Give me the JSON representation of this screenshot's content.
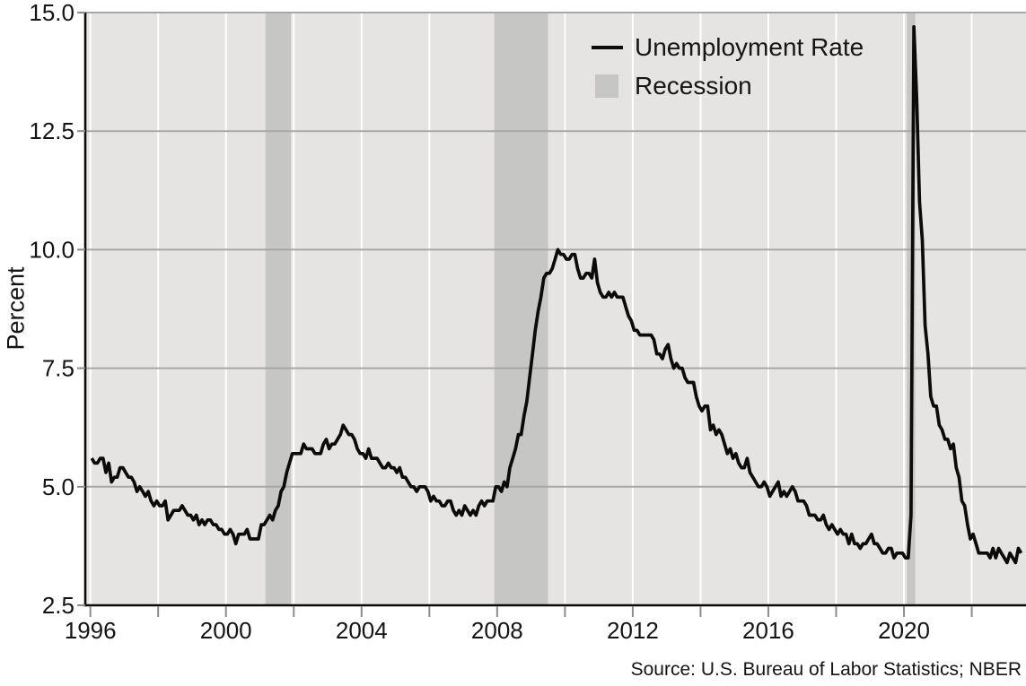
{
  "chart": {
    "ylabel": "Percent",
    "source": "Source: U.S. Bureau of Labor Statistics; NBER",
    "legend": [
      {
        "label": "Unemployment Rate",
        "type": "line",
        "color": "#0b0b0b"
      },
      {
        "label": "Recession",
        "type": "patch",
        "color": "#c6c6c5"
      }
    ]
  },
  "chart_data": {
    "type": "line",
    "title": "",
    "xlabel": "",
    "ylabel": "Percent",
    "x_domain": [
      1995.85,
      2023.6
    ],
    "ylim": [
      2.5,
      15.0
    ],
    "y_ticks": [
      2.5,
      5.0,
      7.5,
      10.0,
      12.5,
      15.0
    ],
    "x_minor_ticks": [
      1996,
      1998,
      2000,
      2002,
      2004,
      2006,
      2008,
      2010,
      2012,
      2014,
      2016,
      2018,
      2020,
      2022
    ],
    "x_labeled_ticks": [
      1996,
      2000,
      2004,
      2008,
      2012,
      2016,
      2020
    ],
    "grid": {
      "horizontal_color": "#a7a7a7",
      "vertical_color": "#ffffff"
    },
    "plot_background": "#e5e4e3",
    "recession_color": "#c6c6c5",
    "legend_position": "upper center-right inside",
    "recessions": [
      {
        "start": "2001-03",
        "end": "2001-11"
      },
      {
        "start": "2007-12",
        "end": "2009-06"
      },
      {
        "start": "2020-02",
        "end": "2020-04"
      }
    ],
    "series": [
      {
        "name": "Unemployment Rate",
        "color": "#0b0b0b",
        "start": "1996-01",
        "frequency": "monthly",
        "unit": "percent",
        "values": [
          5.6,
          5.5,
          5.5,
          5.6,
          5.6,
          5.3,
          5.5,
          5.1,
          5.2,
          5.2,
          5.4,
          5.4,
          5.3,
          5.2,
          5.2,
          5.1,
          4.9,
          5.0,
          4.9,
          4.8,
          4.9,
          4.7,
          4.6,
          4.7,
          4.6,
          4.6,
          4.7,
          4.3,
          4.4,
          4.5,
          4.5,
          4.5,
          4.6,
          4.5,
          4.4,
          4.4,
          4.3,
          4.4,
          4.2,
          4.3,
          4.2,
          4.3,
          4.3,
          4.2,
          4.2,
          4.1,
          4.1,
          4.0,
          4.0,
          4.1,
          4.0,
          3.8,
          4.0,
          4.0,
          4.0,
          4.1,
          3.9,
          3.9,
          3.9,
          3.9,
          4.2,
          4.2,
          4.3,
          4.4,
          4.3,
          4.5,
          4.6,
          4.9,
          5.0,
          5.3,
          5.5,
          5.7,
          5.7,
          5.7,
          5.7,
          5.9,
          5.8,
          5.8,
          5.8,
          5.7,
          5.7,
          5.7,
          5.9,
          6.0,
          5.8,
          5.9,
          5.9,
          6.0,
          6.1,
          6.3,
          6.2,
          6.1,
          6.1,
          6.0,
          5.8,
          5.7,
          5.7,
          5.6,
          5.8,
          5.6,
          5.6,
          5.6,
          5.5,
          5.4,
          5.4,
          5.5,
          5.4,
          5.4,
          5.3,
          5.4,
          5.2,
          5.2,
          5.1,
          5.0,
          5.0,
          4.9,
          5.0,
          5.0,
          5.0,
          4.9,
          4.7,
          4.8,
          4.7,
          4.7,
          4.6,
          4.6,
          4.7,
          4.7,
          4.5,
          4.4,
          4.5,
          4.4,
          4.6,
          4.5,
          4.4,
          4.5,
          4.4,
          4.6,
          4.7,
          4.6,
          4.7,
          4.7,
          4.7,
          5.0,
          5.0,
          4.9,
          5.1,
          5.0,
          5.4,
          5.6,
          5.8,
          6.1,
          6.1,
          6.5,
          6.8,
          7.3,
          7.8,
          8.3,
          8.7,
          9.0,
          9.4,
          9.5,
          9.5,
          9.6,
          9.8,
          10.0,
          9.9,
          9.9,
          9.8,
          9.8,
          9.9,
          9.9,
          9.6,
          9.4,
          9.4,
          9.5,
          9.5,
          9.4,
          9.8,
          9.3,
          9.1,
          9.0,
          9.0,
          9.1,
          9.0,
          9.1,
          9.0,
          9.0,
          9.0,
          8.8,
          8.6,
          8.5,
          8.3,
          8.3,
          8.2,
          8.2,
          8.2,
          8.2,
          8.2,
          8.1,
          7.8,
          7.8,
          7.7,
          7.9,
          8.0,
          7.7,
          7.5,
          7.6,
          7.5,
          7.5,
          7.3,
          7.2,
          7.2,
          7.2,
          6.9,
          6.7,
          6.6,
          6.7,
          6.7,
          6.2,
          6.3,
          6.1,
          6.2,
          6.1,
          5.9,
          5.7,
          5.8,
          5.6,
          5.7,
          5.5,
          5.4,
          5.4,
          5.6,
          5.3,
          5.2,
          5.1,
          5.0,
          5.0,
          5.1,
          5.0,
          4.8,
          4.9,
          5.0,
          5.1,
          4.8,
          4.9,
          4.8,
          4.9,
          5.0,
          4.9,
          4.7,
          4.7,
          4.7,
          4.6,
          4.4,
          4.4,
          4.4,
          4.3,
          4.3,
          4.4,
          4.2,
          4.1,
          4.2,
          4.1,
          4.0,
          4.1,
          4.0,
          4.0,
          3.8,
          4.0,
          3.8,
          3.8,
          3.7,
          3.8,
          3.8,
          3.9,
          4.0,
          3.8,
          3.8,
          3.7,
          3.6,
          3.6,
          3.7,
          3.7,
          3.5,
          3.6,
          3.6,
          3.6,
          3.5,
          3.5,
          4.4,
          14.7,
          13.2,
          11.0,
          10.2,
          8.4,
          7.8,
          6.9,
          6.7,
          6.7,
          6.3,
          6.2,
          6.0,
          6.0,
          5.8,
          5.9,
          5.4,
          5.2,
          4.7,
          4.6,
          4.2,
          3.9,
          4.0,
          3.8,
          3.6,
          3.6,
          3.6,
          3.6,
          3.5,
          3.7,
          3.5,
          3.7,
          3.6,
          3.5,
          3.4,
          3.6,
          3.5,
          3.4,
          3.7,
          3.6
        ]
      }
    ]
  }
}
